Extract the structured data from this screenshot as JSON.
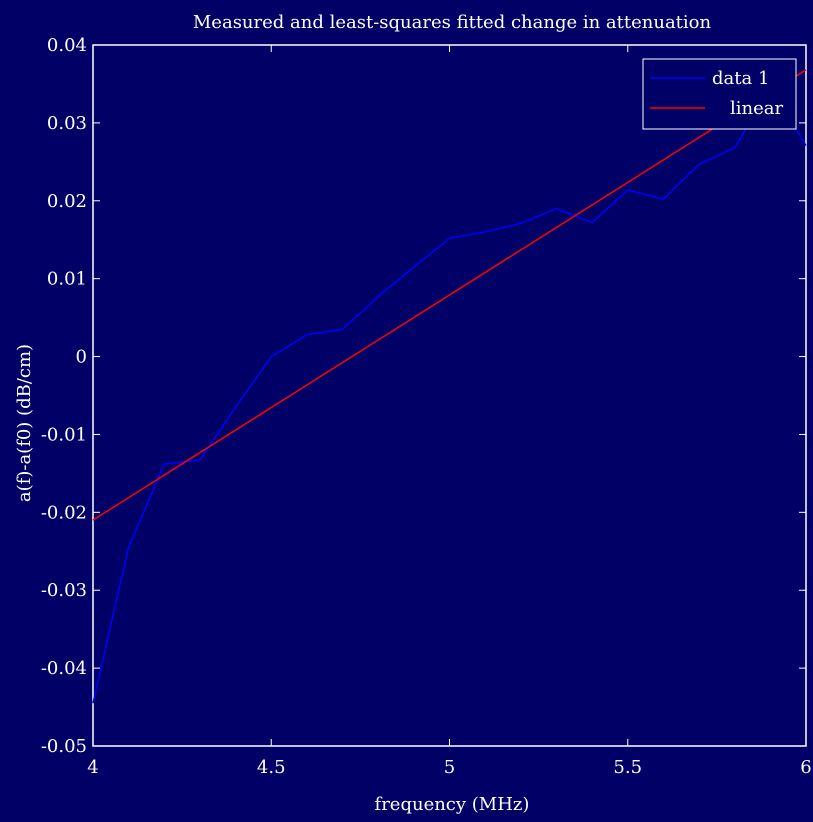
{
  "colors": {
    "background": "#000066",
    "axes": "#ffffff",
    "text": "#ffffff",
    "data_series": "#0000ff",
    "linear_series": "#ff0000"
  },
  "chart_data": {
    "type": "line",
    "title": "Measured and least-squares fitted change in attenuation",
    "xlabel": "frequency (MHz)",
    "ylabel": "a(f)-a(f0)  (dB/cm)",
    "xlim": [
      4,
      6
    ],
    "ylim": [
      -0.05,
      0.04
    ],
    "xticks": [
      4,
      4.5,
      5,
      5.5,
      6
    ],
    "xtick_labels": [
      "4",
      "4.5",
      "5",
      "5.5",
      "6"
    ],
    "yticks": [
      0.04,
      0.03,
      0.02,
      0.01,
      0,
      -0.01,
      -0.02,
      -0.03,
      -0.04,
      -0.05
    ],
    "ytick_labels": [
      "0.04",
      "0.03",
      "0.02",
      "0.01",
      "0",
      "-0.01",
      "-0.02",
      "-0.03",
      "-0.04",
      "-0.05"
    ],
    "grid": false,
    "legend_position": "top-right",
    "series": [
      {
        "name": "data 1",
        "color": "#0000ff",
        "x": [
          4.0,
          4.1,
          4.2,
          4.3,
          4.4,
          4.5,
          4.6,
          4.7,
          4.8,
          4.9,
          5.0,
          5.1,
          5.2,
          5.3,
          5.4,
          5.5,
          5.6,
          5.7,
          5.8,
          5.9,
          6.0
        ],
        "y": [
          -0.0445,
          -0.0245,
          -0.0138,
          -0.0133,
          -0.0065,
          0.0,
          0.0028,
          0.0035,
          0.0077,
          0.0115,
          0.0152,
          0.016,
          0.0171,
          0.019,
          0.0172,
          0.0214,
          0.0202,
          0.0247,
          0.0268,
          0.0345,
          0.0271
        ]
      },
      {
        "name": "linear",
        "color": "#ff0000",
        "x": [
          4.0,
          6.0
        ],
        "y": [
          -0.021,
          0.0368
        ]
      }
    ]
  }
}
